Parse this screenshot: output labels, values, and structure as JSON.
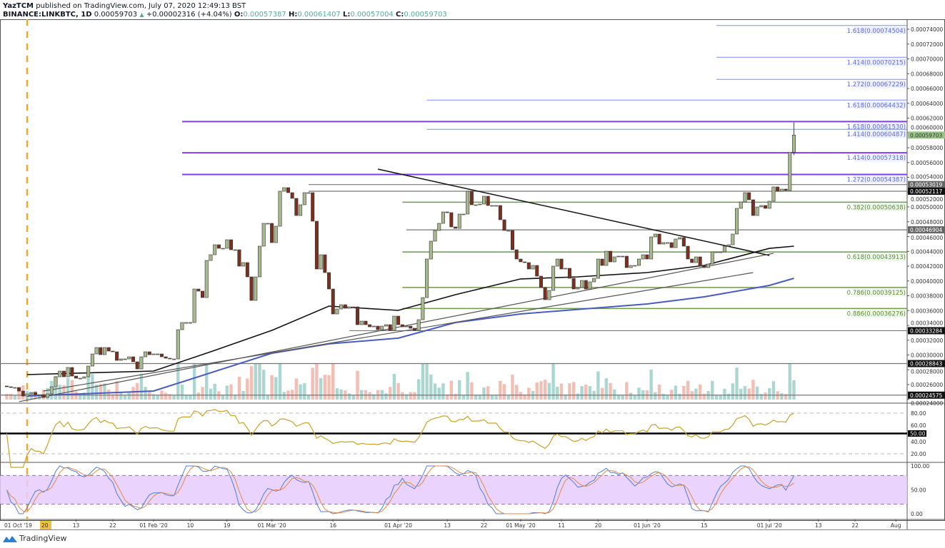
{
  "header": {
    "author": "YazTCM",
    "published": "published on TradingView.com, July 07, 2020 12:49:13 BST",
    "symbol": "BINANCE:LINKBTC, 1D",
    "last": "0.00059703",
    "change": "+0.00002316 (+4.04%)",
    "o_label": "O:",
    "o": "0.00057387",
    "h_label": "H:",
    "h": "0.00061407",
    "l_label": "L:",
    "l": "0.00057004",
    "c_label": "C:",
    "c": "0.00059703"
  },
  "brand": {
    "name": "TradingView",
    "icon": "tradingview-logo-icon"
  },
  "colors": {
    "up": "#a9b98f",
    "down": "#7b2f1e",
    "vol_up": "#8fcac4",
    "vol_down": "#f0a99a",
    "ma_fast": "#111111",
    "ma_slow": "#4a5bc4",
    "rsi": "#c9a227",
    "stoch_k": "#4f7fd8",
    "stoch_d": "#e08a4a",
    "fib_blue": "#7a8ef0",
    "fib_purple": "#7d3ff0",
    "fib_green": "#6f9a4a",
    "stoch_band": "#e6cdfd",
    "vline": "#f0a830"
  },
  "chart_data": {
    "type": "candlestick",
    "interval": "1D",
    "closes_by_month": {
      "2019-12": [
        null,
        null,
        null,
        null,
        null,
        null,
        null,
        null,
        null,
        null,
        null,
        null,
        null,
        null,
        null,
        null,
        null,
        null,
        null,
        null,
        null,
        null,
        null,
        null,
        null,
        null,
        0.00025707,
        0.0002561,
        0.0002561,
        0.00025129,
        0.00024455
      ],
      "2020-01": [
        0.00024743,
        0.00024936,
        0.00024647,
        0.00024647,
        0.00024261,
        0.00024743,
        0.00025707,
        0.00027057,
        0.00027828,
        0.00027057,
        0.0002831,
        0.00027153,
        0.00026864,
        0.00026864,
        0.00027057,
        0.00028503,
        0.00030142,
        0.00031009,
        0.00030045,
        0.00031009,
        0.00030527,
        0.00030431,
        0.00029274,
        0.00029467,
        0.00029467,
        0.00029756,
        0.00029081,
        0.00028117,
        0.00029756,
        0.00030431,
        0.00030045
      ],
      "2020-02": [
        0.00030142,
        0.00030142,
        0.00029756,
        0.00029563,
        0.00029467,
        0.00029467,
        0.00033419,
        0.00034383,
        0.00034383,
        0.00034383,
        0.00038914,
        0.00038625,
        0.00037757,
        0.0004277,
        0.00043541,
        0.00044891,
        0.00044409,
        0.00044409,
        0.00045566,
        0.00044216,
        0.00044216,
        0.00041999,
        0.00042481,
        0.00040553,
        0.00037372,
        0.00040553,
        0.00044698,
        0.00047783,
        0.00047783
      ],
      "2020-03": [
        0.0004518,
        0.00047397,
        0.00052121,
        0.00052603,
        0.00051928,
        0.00051157,
        0.00048843,
        0.00050289,
        0.00051928,
        0.00051928,
        0.00048072,
        0.00041613,
        0.00043541,
        0.00041131,
        0.00038914,
        0.0003554,
        0.00036215,
        0.00036793,
        0.00036311,
        0.00036504,
        0.00036504,
        0.00034094,
        0.00034576,
        0.00034094,
        0.00033805,
        0.00033901,
        0.00033419,
        0.00033901,
        0.00034094,
        0.00033323,
        0.00035251
      ],
      "2020-04": [
        0.00034094,
        0.00033805,
        0.00033901,
        0.00033612,
        0.00033323,
        0.00034769,
        0.00037757,
        0.00042963,
        0.00045373,
        0.00046819,
        0.00047783,
        0.00049325,
        0.00049229,
        0.00047301,
        0.00047108,
        0.00049036,
        0.00049036,
        0.00052121,
        0.00050289,
        0.00050289,
        0.00050386,
        0.00051446,
        0.00050193,
        0.00050193,
        0.00050193,
        0.00048265,
        0.00046819,
        0.00046819,
        0.00044216,
        0.00042963
      ],
      "2020-05": [
        0.00042577,
        0.00042481,
        0.00041613,
        0.00042095,
        0.00040649,
        0.00039107,
        0.00037468,
        0.00038721,
        0.00041999,
        0.00042963,
        0.00041613,
        0.0004171,
        0.0004036,
        0.00038914,
        0.00039107,
        0.00040071,
        0.00038914,
        0.00039878,
        0.0004036,
        0.00042963,
        0.00042095,
        0.00044023,
        0.00042577,
        0.00043252,
        0.00043348,
        0.00043348,
        0.00041806,
        0.00042095,
        0.00042095,
        0.00042963,
        0.00043541
      ],
      "2020-06": [
        0.00042963,
        0.00045951,
        0.00046337,
        0.00044987,
        0.0004518,
        0.0004518,
        0.00044505,
        0.00045662,
        0.00045855,
        0.00044698,
        0.00042963,
        0.00042481,
        0.00043252,
        0.00041999,
        0.00041806,
        0.00042288,
        0.00043927,
        0.00043927,
        0.00043927,
        0.00044698,
        0.00044891,
        0.00046337,
        0.00049807,
        0.00050675,
        0.00051928,
        0.00050964,
        0.00048843,
        0.0005,
        0.00050193,
        0.00049807
      ],
      "2020-07": [
        0.00050771,
        0.00052699,
        0.00052121,
        0.0005241,
        0.00052217,
        0.00057387,
        0.00059703
      ]
    },
    "last_candle": {
      "date": "2020-07-07",
      "open": 0.00057387,
      "high": 0.00061407,
      "low": 0.00057004,
      "close": 0.00059703
    },
    "moving_averages": [
      {
        "color_key": "ma_fast",
        "points": [
          [
            "2020-01-01",
            0.0002735
          ],
          [
            "2020-02-01",
            0.0002783
          ],
          [
            "2020-02-15",
            0.0003043
          ],
          [
            "2020-03-01",
            0.0003333
          ],
          [
            "2020-03-15",
            0.000366
          ],
          [
            "2020-04-01",
            0.0003602
          ],
          [
            "2020-04-15",
            0.0003814
          ],
          [
            "2020-05-01",
            0.0004027
          ],
          [
            "2020-05-15",
            0.0004055
          ],
          [
            "2020-06-01",
            0.0004113
          ],
          [
            "2020-06-15",
            0.000421
          ],
          [
            "2020-07-01",
            0.000444
          ],
          [
            "2020-07-07",
            0.000447
          ]
        ]
      },
      {
        "color_key": "ma_slow",
        "points": [
          [
            "2020-01-01",
            0.0002446
          ],
          [
            "2020-02-01",
            0.0002513
          ],
          [
            "2020-03-01",
            0.0003024
          ],
          [
            "2020-03-15",
            0.000315
          ],
          [
            "2020-04-01",
            0.0003227
          ],
          [
            "2020-04-15",
            0.0003439
          ],
          [
            "2020-05-01",
            0.0003554
          ],
          [
            "2020-06-01",
            0.0003689
          ],
          [
            "2020-06-15",
            0.0003786
          ],
          [
            "2020-07-01",
            0.000394
          ],
          [
            "2020-07-07",
            0.0004036
          ]
        ]
      }
    ],
    "trend_lines": [
      {
        "from": [
          "2020-03-27",
          0.0005511
        ],
        "to": [
          "2020-07-01",
          0.0004345
        ]
      },
      {
        "from": [
          "2019-12-30",
          0.0002369
        ],
        "to": [
          "2020-07-02",
          0.0004373
        ]
      },
      {
        "from": [
          "2020-01-05",
          0.0002513
        ],
        "to": [
          "2020-06-27",
          0.0004113
        ]
      }
    ],
    "vertical_marker_date": "2020-01-01",
    "fib_levels": [
      {
        "label": "1.618(0.00074504)",
        "price": 0.00074504,
        "from": "2020-06-18",
        "style": "fib_blue"
      },
      {
        "label": "1.414(0.00070215)",
        "price": 0.00070215,
        "from": "2020-06-18",
        "style": "fib_blue"
      },
      {
        "label": "1.272(0.00067229)",
        "price": 0.00067229,
        "from": "2020-06-18",
        "style": "fib_blue"
      },
      {
        "label": "1.618(0.00064432)",
        "price": 0.00064432,
        "from": "2020-04-08",
        "style": "fib_blue"
      },
      {
        "label": "1.618(0.00061530)",
        "price": 0.0006153,
        "from": "2020-02-08",
        "style": "fib_purple"
      },
      {
        "label": "1.414(0.00060487)",
        "price": 0.00060487,
        "from": "2020-04-08",
        "style": "fib_blue"
      },
      {
        "label": "1.414(0.00057318)",
        "price": 0.00057318,
        "from": "2020-02-08",
        "style": "fib_purple"
      },
      {
        "label": "1.272(0.00054387)",
        "price": 0.00054387,
        "from": "2020-02-08",
        "style": "fib_purple"
      },
      {
        "label": "0.382(0.00050638)",
        "price": 0.00050638,
        "from": "2020-04-02",
        "style": "fib_green"
      },
      {
        "label": "0.618(0.00043913)",
        "price": 0.00043913,
        "from": "2020-04-02",
        "style": "fib_green"
      },
      {
        "label": "0.786(0.00039125)",
        "price": 0.00039125,
        "from": "2020-04-02",
        "style": "fib_green"
      },
      {
        "label": "0.886(0.00036276)",
        "price": 0.00036276,
        "from": "2020-04-02",
        "style": "fib_green"
      }
    ],
    "horizontal_levels": [
      {
        "label": "0.00053019",
        "price": 0.00053019,
        "from": "2020-03-10",
        "badge": "#666666"
      },
      {
        "label": "0.00052117",
        "price": 0.00052117,
        "from": "2020-03-10",
        "badge": "#111111"
      },
      {
        "label": "0.00046904",
        "price": 0.00046904,
        "from": "2020-04-03",
        "badge": "#666666"
      },
      {
        "label": "0.00033284",
        "price": 0.00033284,
        "from": "2020-03-20",
        "badge": "#111111"
      },
      {
        "label": "0.00028843",
        "price": 0.00028843,
        "from": null,
        "badge": "#111111"
      },
      {
        "label": "0.00024575",
        "price": 0.00024575,
        "from": null,
        "badge": "#111111"
      }
    ],
    "last_price_badge": {
      "label": "0.00059703",
      "price": 0.00059703,
      "color": "#9cc38a"
    },
    "price_axis": {
      "ylim": [
        0.00024,
        0.00075
      ],
      "ticks": [
        "0.00024000",
        "0.00026000",
        "0.00028000",
        "0.00030000",
        "0.00032000",
        "0.00034000",
        "0.00036000",
        "0.00038000",
        "0.00040000",
        "0.00042000",
        "0.00044000",
        "0.00046000",
        "0.00048000",
        "0.00050000",
        "0.00052000",
        "0.00054000",
        "0.00056000",
        "0.00058000",
        "0.00060000",
        "0.00062000",
        "0.00064000",
        "0.00066000",
        "0.00068000",
        "0.00070000",
        "0.00072000",
        "0.00074000"
      ]
    },
    "rsi_panel": {
      "ylim": [
        0,
        100
      ],
      "ticks": [
        "80.00",
        "60.00",
        "40.00",
        "20.00"
      ],
      "bands": [
        80,
        20
      ],
      "midline_label": "50.00"
    },
    "stoch_panel": {
      "ylim": [
        0,
        100
      ],
      "ticks": [
        "100.00",
        "50.00",
        "0.00"
      ],
      "band": [
        20,
        80
      ]
    },
    "x_axis": {
      "range": [
        "2019-12-26",
        "2020-08-03"
      ],
      "first_label": "01 Oct '19",
      "first_label_tail": "20",
      "ticks": [
        {
          "text": "13",
          "date": "2020-01-13"
        },
        {
          "text": "22",
          "date": "2020-01-22"
        },
        {
          "text": "01 Feb '20",
          "date": "2020-02-01"
        },
        {
          "text": "10",
          "date": "2020-02-10"
        },
        {
          "text": "19",
          "date": "2020-02-19"
        },
        {
          "text": "01 Mar '20",
          "date": "2020-03-01"
        },
        {
          "text": "16",
          "date": "2020-03-16"
        },
        {
          "text": "01 Apr '20",
          "date": "2020-04-01"
        },
        {
          "text": "13",
          "date": "2020-04-13"
        },
        {
          "text": "22",
          "date": "2020-04-22"
        },
        {
          "text": "01 May '20",
          "date": "2020-05-01"
        },
        {
          "text": "11",
          "date": "2020-05-11"
        },
        {
          "text": "20",
          "date": "2020-05-20"
        },
        {
          "text": "01 Jun '20",
          "date": "2020-06-01"
        },
        {
          "text": "15",
          "date": "2020-06-15"
        },
        {
          "text": "01 Jul '20",
          "date": "2020-07-01"
        },
        {
          "text": "13",
          "date": "2020-07-13"
        },
        {
          "text": "22",
          "date": "2020-07-22"
        },
        {
          "text": "Aug",
          "date": "2020-08-01"
        }
      ]
    }
  }
}
